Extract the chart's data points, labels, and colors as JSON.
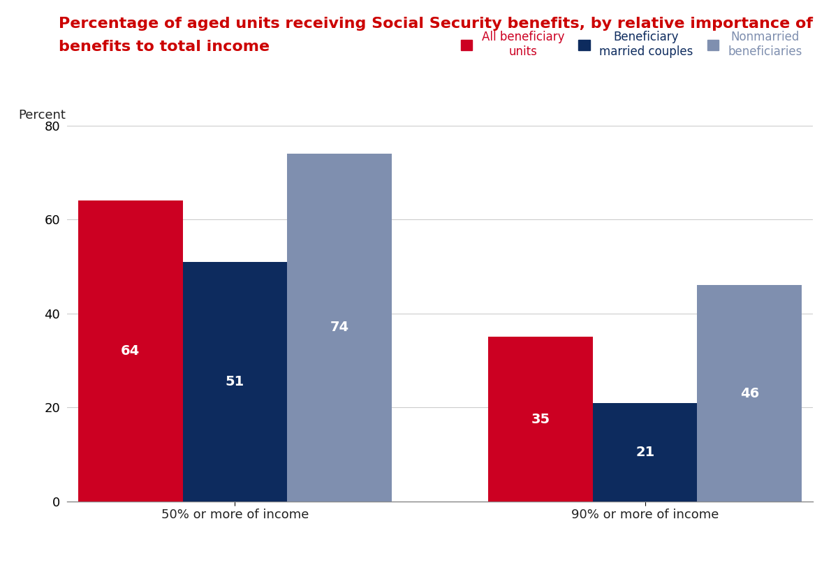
{
  "title_line1": "Percentage of aged units receiving Social Security benefits, by relative importance of",
  "title_line2": "benefits to total income",
  "title_color": "#cc0000",
  "ylabel": "Percent",
  "categories": [
    "50% or more of income",
    "90% or more of income"
  ],
  "series_names": [
    "All beneficiary\nunits",
    "Beneficiary\nmarried couples",
    "Nonmarried\nbeneficiaries"
  ],
  "series_values": [
    [
      64,
      35
    ],
    [
      51,
      21
    ],
    [
      74,
      46
    ]
  ],
  "colors": [
    "#cc0022",
    "#0d2b5e",
    "#7f8faf"
  ],
  "legend_colors": [
    "#cc0022",
    "#0d2b5e",
    "#7f8faf"
  ],
  "ylim": [
    0,
    80
  ],
  "yticks": [
    0,
    20,
    40,
    60,
    80
  ],
  "bar_width": 0.28,
  "group_positions": [
    0.45,
    1.55
  ],
  "background_color": "#ffffff",
  "grid_color": "#cccccc",
  "title_fontsize": 16,
  "tick_fontsize": 13,
  "ylabel_fontsize": 13,
  "value_fontsize": 14,
  "legend_fontsize": 12
}
